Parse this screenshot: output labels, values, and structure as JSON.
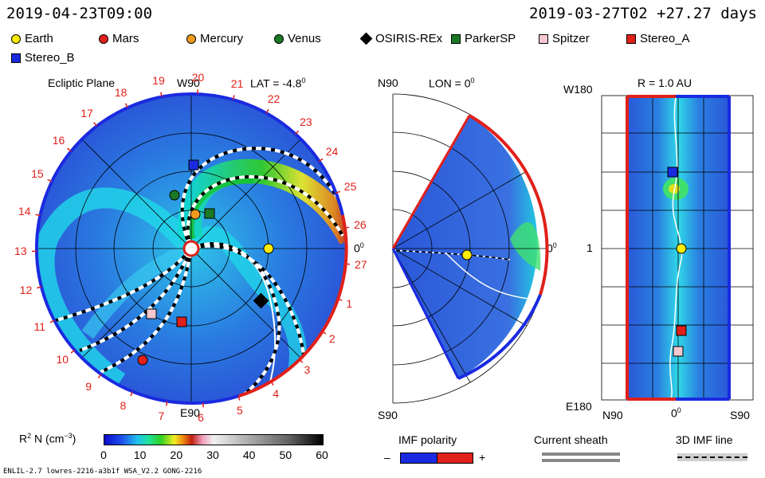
{
  "header": {
    "left_time": "2019-04-23T09:00",
    "right_time": "2019-03-27T02 +27.27 days"
  },
  "legend": [
    {
      "name": "Earth",
      "shape": "circle",
      "color": "#ffec00"
    },
    {
      "name": "Mars",
      "shape": "circle",
      "color": "#e0201a"
    },
    {
      "name": "Mercury",
      "shape": "circle",
      "color": "#f29a1c"
    },
    {
      "name": "Venus",
      "shape": "circle",
      "color": "#1a7a26"
    },
    {
      "name": "OSIRIS-REx",
      "shape": "diamond",
      "color": "#000000"
    },
    {
      "name": "ParkerSP",
      "shape": "square",
      "color": "#1a7a26"
    },
    {
      "name": "Spitzer",
      "shape": "square",
      "color": "#f7c7cf"
    },
    {
      "name": "Stereo_A",
      "shape": "square",
      "color": "#e0201a"
    },
    {
      "name": "Stereo_B",
      "shape": "square",
      "color": "#1a2ae0"
    }
  ],
  "panel1": {
    "title": "Ecliptic Plane",
    "top_label": "W90",
    "lat_label": "LAT = -4.8",
    "deg": "0",
    "right_label": "0",
    "bottom_label": "E90",
    "ticks": [
      "19",
      "20",
      "21",
      "22",
      "23",
      "24",
      "25",
      "26",
      "27",
      "1",
      "2",
      "3",
      "4",
      "5",
      "6",
      "7",
      "8",
      "9",
      "10",
      "11",
      "12",
      "13",
      "14",
      "15",
      "16",
      "17",
      "18"
    ]
  },
  "panel2": {
    "top_left": "N90",
    "lon_label": "LON = 0",
    "deg": "0",
    "right_label": "0",
    "bottom_left": "S90"
  },
  "panel3": {
    "title": "R = 1.0 AU",
    "top_left": "W180",
    "mid_left": "1",
    "bottom_left": "E180",
    "x_left": "N90",
    "x_mid": "0",
    "x_right": "S90"
  },
  "colorbar": {
    "label": "R",
    "label_rest": " N (cm",
    "label_end": ")",
    "ticks": [
      "0",
      "10",
      "20",
      "30",
      "40",
      "50",
      "60"
    ],
    "max": 60
  },
  "imf": {
    "title": "IMF polarity",
    "minus": "–",
    "plus": "+"
  },
  "sheath": {
    "title": "Current sheath"
  },
  "imf3d": {
    "title": "3D IMF line"
  },
  "footer": "ENLIL-2.7 lowres-2216-a3b1f WSA_V2.2 GONG-2216"
}
